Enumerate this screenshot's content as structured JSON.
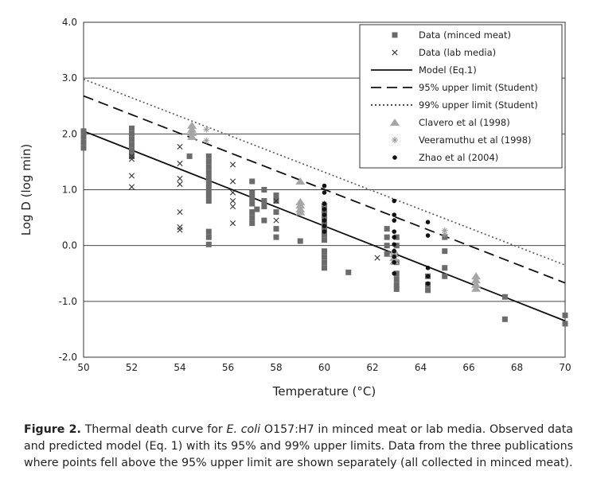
{
  "chart_data": {
    "type": "scatter",
    "title": "",
    "xlabel": "Temperature (°C)",
    "ylabel": "Log D (log min)",
    "xlim": [
      50,
      70
    ],
    "ylim": [
      -2.0,
      4.0
    ],
    "xticks": [
      50,
      52,
      54,
      56,
      58,
      60,
      62,
      64,
      66,
      68,
      70
    ],
    "yticks": [
      4.0,
      3.0,
      2.0,
      1.0,
      0.0,
      -1.0,
      -2.0
    ],
    "ytick_labels": [
      "4.0",
      "3.0",
      "2.0",
      "1.0",
      "0.0",
      "-1.0",
      "-2.0"
    ],
    "grid": "horizontal",
    "legend_position": "top-right",
    "series": [
      {
        "name": "Data (minced meat)",
        "marker": "square",
        "color": "#6b6b6b",
        "points": [
          [
            50,
            2.05
          ],
          [
            50,
            1.95
          ],
          [
            50,
            1.85
          ],
          [
            50,
            1.75
          ],
          [
            52,
            2.1
          ],
          [
            52,
            2.0
          ],
          [
            52,
            1.9
          ],
          [
            52,
            1.8
          ],
          [
            52,
            1.7
          ],
          [
            52,
            1.6
          ],
          [
            54.4,
            1.6
          ],
          [
            55.2,
            1.6
          ],
          [
            55.2,
            1.5
          ],
          [
            55.2,
            1.4
          ],
          [
            55.2,
            1.3
          ],
          [
            55.2,
            1.2
          ],
          [
            55.2,
            1.1
          ],
          [
            55.2,
            1.0
          ],
          [
            55.2,
            0.9
          ],
          [
            55.2,
            0.8
          ],
          [
            55.2,
            0.25
          ],
          [
            55.2,
            0.15
          ],
          [
            55.2,
            0.02
          ],
          [
            57,
            1.15
          ],
          [
            57,
            0.95
          ],
          [
            57,
            0.85
          ],
          [
            57,
            0.75
          ],
          [
            57,
            0.6
          ],
          [
            57,
            0.5
          ],
          [
            57,
            0.4
          ],
          [
            57.2,
            0.65
          ],
          [
            57.5,
            1.0
          ],
          [
            57.5,
            0.8
          ],
          [
            57.5,
            0.7
          ],
          [
            57.5,
            0.45
          ],
          [
            58,
            0.9
          ],
          [
            58,
            0.8
          ],
          [
            58,
            0.6
          ],
          [
            58,
            0.3
          ],
          [
            58,
            0.15
          ],
          [
            59,
            0.08
          ],
          [
            60,
            0.7
          ],
          [
            60,
            0.6
          ],
          [
            60,
            0.5
          ],
          [
            60,
            0.4
          ],
          [
            60,
            0.3
          ],
          [
            60,
            0.2
          ],
          [
            60,
            0.1
          ],
          [
            60,
            -0.1
          ],
          [
            60,
            -0.2
          ],
          [
            60,
            -0.3
          ],
          [
            60,
            -0.4
          ],
          [
            61,
            -0.48
          ],
          [
            62.6,
            0.3
          ],
          [
            62.6,
            0.15
          ],
          [
            62.6,
            0.0
          ],
          [
            62.6,
            -0.15
          ],
          [
            63,
            0.15
          ],
          [
            63,
            0.0
          ],
          [
            63,
            -0.3
          ],
          [
            63,
            -0.5
          ],
          [
            63,
            -0.6
          ],
          [
            63,
            -0.7
          ],
          [
            63,
            -0.78
          ],
          [
            64.3,
            -0.55
          ],
          [
            64.3,
            -0.7
          ],
          [
            64.3,
            -0.8
          ],
          [
            65,
            0.15
          ],
          [
            65,
            -0.1
          ],
          [
            65,
            -0.4
          ],
          [
            65,
            -0.55
          ],
          [
            67.5,
            -0.92
          ],
          [
            67.5,
            -1.32
          ],
          [
            70,
            -1.25
          ],
          [
            70,
            -1.4
          ]
        ]
      },
      {
        "name": "Data (lab media)",
        "marker": "x",
        "color": "#333333",
        "points": [
          [
            52,
            1.6
          ],
          [
            52,
            1.55
          ],
          [
            52,
            1.25
          ],
          [
            52,
            1.05
          ],
          [
            54,
            1.77
          ],
          [
            54,
            1.47
          ],
          [
            54,
            1.2
          ],
          [
            54,
            1.1
          ],
          [
            54,
            0.6
          ],
          [
            54,
            0.33
          ],
          [
            54,
            0.28
          ],
          [
            56.2,
            1.45
          ],
          [
            56.2,
            1.15
          ],
          [
            56.2,
            0.95
          ],
          [
            56.2,
            0.8
          ],
          [
            56.2,
            0.7
          ],
          [
            56.2,
            0.4
          ],
          [
            58,
            0.8
          ],
          [
            58,
            0.45
          ],
          [
            62.2,
            -0.22
          ],
          [
            62.9,
            -0.3
          ]
        ]
      },
      {
        "name": "Clavero et al (1998)",
        "marker": "triangle",
        "color": "#a6a6a6",
        "points": [
          [
            54.5,
            2.15
          ],
          [
            54.5,
            2.08
          ],
          [
            54.5,
            2.02
          ],
          [
            54.5,
            1.95
          ],
          [
            59,
            1.15
          ],
          [
            59,
            0.78
          ],
          [
            59,
            0.72
          ],
          [
            59,
            0.65
          ],
          [
            59,
            0.6
          ],
          [
            62.9,
            -0.1
          ],
          [
            62.9,
            -0.15
          ],
          [
            62.9,
            -0.22
          ],
          [
            62.9,
            -0.28
          ],
          [
            66.3,
            -0.55
          ],
          [
            66.3,
            -0.62
          ],
          [
            66.3,
            -0.7
          ],
          [
            66.3,
            -0.77
          ]
        ]
      },
      {
        "name": "Veeramuthu et al (1998)",
        "marker": "asterisk",
        "color": "#999999",
        "points": [
          [
            55.1,
            2.08
          ],
          [
            55.1,
            1.88
          ],
          [
            60,
            0.75
          ],
          [
            65,
            0.27
          ],
          [
            65,
            0.2
          ]
        ]
      },
      {
        "name": "Zhao et al (2004)",
        "marker": "dot",
        "color": "#111111",
        "points": [
          [
            60,
            1.07
          ],
          [
            60,
            0.95
          ],
          [
            60,
            0.75
          ],
          [
            60,
            0.65
          ],
          [
            60,
            0.55
          ],
          [
            60,
            0.45
          ],
          [
            60,
            0.35
          ],
          [
            60,
            0.25
          ],
          [
            62.9,
            0.8
          ],
          [
            62.9,
            0.55
          ],
          [
            62.9,
            0.45
          ],
          [
            62.9,
            0.25
          ],
          [
            62.9,
            0.15
          ],
          [
            62.9,
            0.02
          ],
          [
            62.9,
            -0.1
          ],
          [
            62.9,
            -0.2
          ],
          [
            62.9,
            -0.3
          ],
          [
            62.9,
            -0.5
          ],
          [
            64.3,
            0.42
          ],
          [
            64.3,
            0.18
          ],
          [
            64.3,
            -0.4
          ],
          [
            64.3,
            -0.55
          ],
          [
            64.3,
            -0.68
          ]
        ]
      }
    ],
    "lines": [
      {
        "name": "Model (Eq.1)",
        "style": "solid",
        "color": "#111111",
        "x": [
          50,
          70
        ],
        "y": [
          2.05,
          -1.35
        ]
      },
      {
        "name": "95% upper limit (Student)",
        "style": "dashed",
        "color": "#111111",
        "x": [
          50,
          70
        ],
        "y": [
          2.68,
          -0.67
        ]
      },
      {
        "name": "99% upper limit (Student)",
        "style": "dotted",
        "color": "#555555",
        "x": [
          50,
          70
        ],
        "y": [
          2.98,
          -0.35
        ]
      }
    ],
    "legend": [
      {
        "label": "Data (minced meat)",
        "symbol": "square"
      },
      {
        "label": "Data (lab media)",
        "symbol": "x"
      },
      {
        "label": "Model (Eq.1)",
        "symbol": "solid"
      },
      {
        "label": "95% upper limit (Student)",
        "symbol": "dashed"
      },
      {
        "label": "99% upper limit (Student)",
        "symbol": "dotted"
      },
      {
        "label": "Clavero et al (1998)",
        "symbol": "triangle"
      },
      {
        "label": "Veeramuthu et al (1998)",
        "symbol": "asterisk"
      },
      {
        "label": "Zhao et al (2004)",
        "symbol": "dot"
      }
    ]
  },
  "caption": {
    "label": "Figure 2.",
    "text_1": " Thermal death curve for ",
    "organism": "E. coli",
    "text_2": " O157:H7 in minced meat or lab media. Observed data and predicted model (Eq. 1) with its 95% and 99% upper limits. Data from the three publications where points fell above the 95% upper limit are shown separately (all collected in minced meat)."
  }
}
